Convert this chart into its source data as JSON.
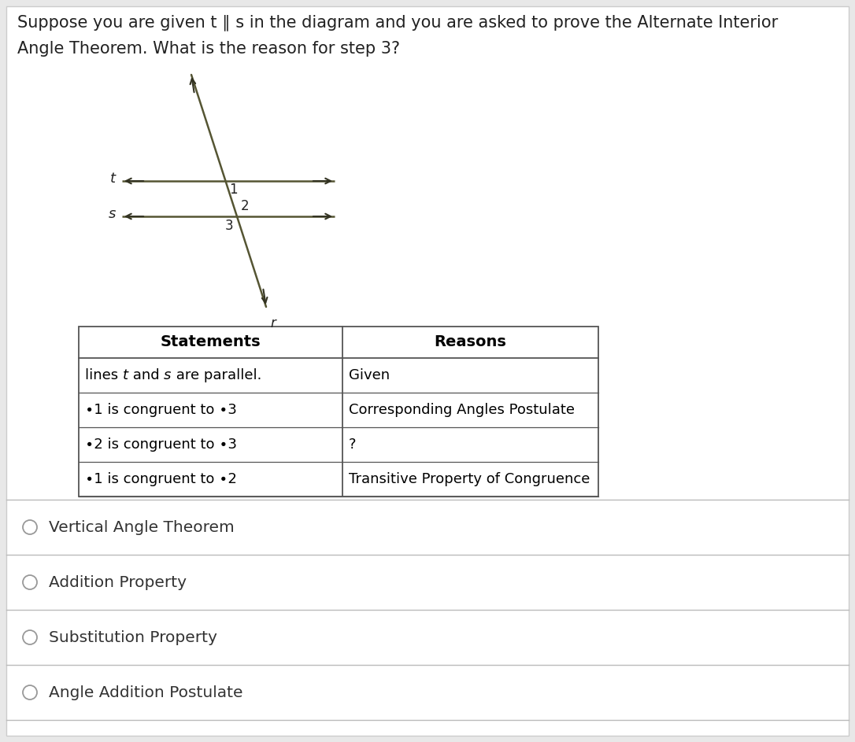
{
  "title_line1": "Suppose you are given t ∥ s in the diagram and you are asked to prove the Alternate Interior",
  "title_line2": "Angle Theorem. What is the reason for step 3?",
  "table_headers": [
    "Statements",
    "Reasons"
  ],
  "table_rows": [
    [
      "lines t and s are parallel.",
      "Given"
    ],
    [
      "∙1 is congruent to ∙3",
      "Corresponding Angles Postulate"
    ],
    [
      "∙2 is congruent to ∙3",
      "?"
    ],
    [
      "∙1 is congruent to ∙2",
      "Transitive Property of Congruence"
    ]
  ],
  "choices": [
    "Vertical Angle Theorem",
    "Addition Property",
    "Substitution Property",
    "Angle Addition Postulate"
  ],
  "bg_color": "#e8e8e8",
  "table_line_color": "#555555",
  "choice_line_color": "#bbbbbb",
  "radio_color": "#999999",
  "diagram": {
    "t_label": "t",
    "s_label": "s",
    "r_label": "r",
    "angle_labels": [
      "1",
      "2",
      "3"
    ]
  }
}
